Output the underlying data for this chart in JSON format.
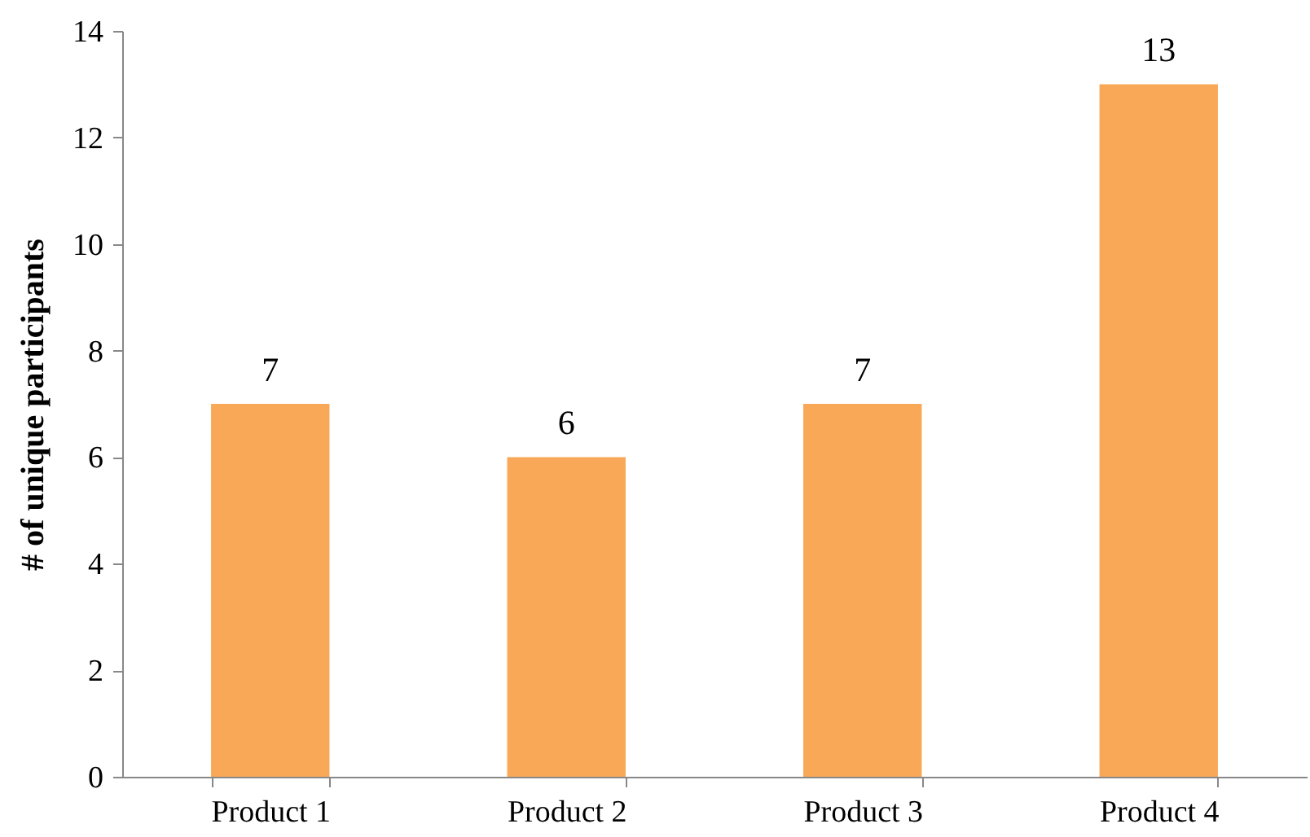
{
  "chart_data": {
    "type": "bar",
    "ylabel": "# of unique participants",
    "categories": [
      "Product 1",
      "Product 2",
      "Product 3",
      "Product 4"
    ],
    "values": [
      7,
      6,
      7,
      13
    ],
    "color": "#f9a857",
    "ylim": [
      0,
      14
    ],
    "yticks": [
      0,
      2,
      4,
      6,
      8,
      10,
      12,
      14
    ],
    "grid": false,
    "data_labels": true
  }
}
